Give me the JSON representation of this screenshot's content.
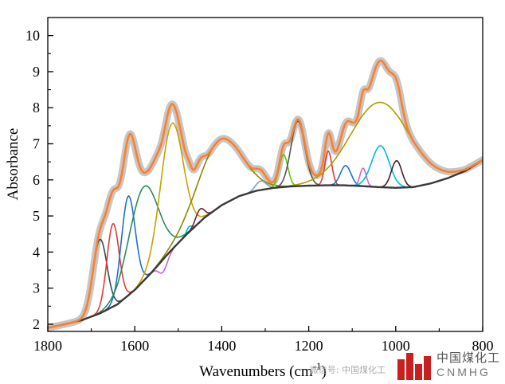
{
  "chart_data": {
    "type": "line",
    "title": "",
    "xlabel": "Wavenumbers (cm",
    "xlabel_sup": "-1",
    "xlabel_end": ")",
    "ylabel": "Absorbance",
    "xlim": [
      1800,
      800
    ],
    "ylim": [
      1.8,
      10.5
    ],
    "x_reversed": true,
    "grid": false,
    "x_ticks": [
      1800,
      1600,
      1400,
      1200,
      1000,
      800
    ],
    "y_ticks": [
      2,
      3,
      4,
      5,
      6,
      7,
      8,
      9,
      10
    ],
    "x_tick_labels": [
      "1800",
      "1600",
      "1400",
      "1200",
      "1000",
      "800"
    ],
    "y_tick_labels": [
      "2",
      "3",
      "4",
      "5",
      "6",
      "7",
      "8",
      "9",
      "10"
    ],
    "baseline": {
      "x": [
        1800,
        1760,
        1720,
        1680,
        1640,
        1600,
        1560,
        1520,
        1480,
        1440,
        1400,
        1360,
        1320,
        1280,
        1240,
        1200,
        1160,
        1120,
        1080,
        1040,
        1000,
        960,
        920,
        880,
        840,
        800
      ],
      "y": [
        1.9,
        2.0,
        2.12,
        2.3,
        2.55,
        2.95,
        3.45,
        4.0,
        4.5,
        4.95,
        5.3,
        5.55,
        5.7,
        5.78,
        5.82,
        5.84,
        5.85,
        5.85,
        5.83,
        5.8,
        5.78,
        5.8,
        5.9,
        6.05,
        6.25,
        6.55
      ]
    },
    "peaks": [
      {
        "center": 1680,
        "height": 2.05,
        "width": 16,
        "color": "#2b4f4f"
      },
      {
        "center": 1650,
        "height": 2.3,
        "width": 14,
        "color": "#e03a3a"
      },
      {
        "center": 1615,
        "height": 2.75,
        "width": 16,
        "color": "#1e6fd0"
      },
      {
        "center": 1580,
        "height": 2.6,
        "width": 34,
        "color": "#2e8b57"
      },
      {
        "center": 1535,
        "height": -0.35,
        "width": 10,
        "color": "#cc66cc"
      },
      {
        "center": 1515,
        "height": 3.5,
        "width": 26,
        "color": "#c9a000"
      },
      {
        "center": 1475,
        "height": 0.15,
        "width": 6,
        "color": "#00bcd4"
      },
      {
        "center": 1450,
        "height": 0.35,
        "width": 10,
        "color": "#7a1f2b"
      },
      {
        "center": 1405,
        "height": 1.85,
        "width": 50,
        "color": "#8a8a00"
      },
      {
        "center": 1310,
        "height": 0.25,
        "width": 12,
        "color": "#7f9fbf"
      },
      {
        "center": 1258,
        "height": 0.9,
        "width": 10,
        "color": "#5ec322"
      },
      {
        "center": 1225,
        "height": 1.8,
        "width": 16,
        "color": "#555555"
      },
      {
        "center": 1155,
        "height": 0.95,
        "width": 8,
        "color": "#e03a3a"
      },
      {
        "center": 1115,
        "height": 0.55,
        "width": 12,
        "color": "#1e6fd0"
      },
      {
        "center": 1075,
        "height": 0.5,
        "width": 7,
        "color": "#cc66cc"
      },
      {
        "center": 1035,
        "height": 2.35,
        "width": 68,
        "color": "#b39b00"
      },
      {
        "center": 1035,
        "height": 1.15,
        "width": 20,
        "color": "#00bcd4"
      },
      {
        "center": 998,
        "height": 0.75,
        "width": 12,
        "color": "#4a1a2a"
      }
    ],
    "series": [
      {
        "name": "",
        "kind": "experimental",
        "color": "#c0c0c0"
      },
      {
        "name": "",
        "kind": "fitted",
        "color": "#ff7f27"
      }
    ]
  },
  "watermark": {
    "wechat_label": "微信号: 中国煤化工",
    "brand_cn": "中国煤化工",
    "brand_en": "CNMHG"
  }
}
